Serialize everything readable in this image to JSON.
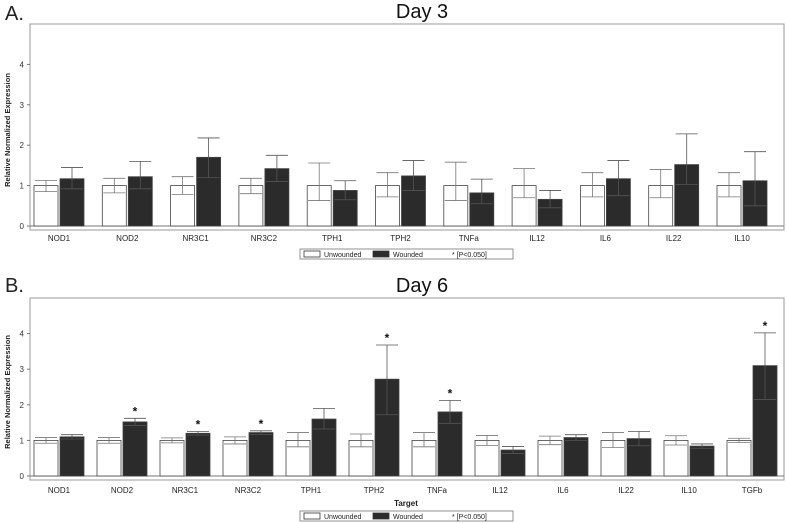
{
  "chart_data": [
    {
      "type": "bar",
      "panel_label": "A.",
      "title": "Day 3",
      "xlabel": "",
      "ylabel": "Relative Normalized Expression",
      "ylim": [
        0,
        5
      ],
      "yticks": [
        0,
        1,
        2,
        3,
        4
      ],
      "categories": [
        "NOD1",
        "NOD2",
        "NR3C1",
        "NR3C2",
        "TPH1",
        "TPH2",
        "TNFa",
        "IL12",
        "IL6",
        "IL22",
        "IL10"
      ],
      "series": [
        {
          "name": "Unwounded",
          "color": "#ffffff",
          "values": [
            1.0,
            1.0,
            1.0,
            1.0,
            1.0,
            1.0,
            1.0,
            1.0,
            1.0,
            1.0,
            1.0
          ],
          "err_low": [
            0.85,
            0.82,
            0.78,
            0.8,
            0.63,
            0.72,
            0.63,
            0.7,
            0.72,
            0.7,
            0.72
          ],
          "err_high": [
            1.13,
            1.18,
            1.22,
            1.18,
            1.56,
            1.32,
            1.58,
            1.42,
            1.32,
            1.4,
            1.32
          ]
        },
        {
          "name": "Wounded",
          "color": "#2b2b2b",
          "values": [
            1.17,
            1.22,
            1.7,
            1.42,
            0.88,
            1.24,
            0.82,
            0.66,
            1.17,
            1.52,
            1.12
          ],
          "err_low": [
            0.92,
            0.92,
            1.2,
            1.1,
            0.65,
            0.88,
            0.55,
            0.45,
            0.75,
            1.03,
            0.5
          ],
          "err_high": [
            1.45,
            1.6,
            2.18,
            1.75,
            1.12,
            1.62,
            1.16,
            0.88,
            1.62,
            2.28,
            1.84
          ]
        }
      ],
      "significant": [],
      "legend": {
        "unwounded": "Unwounded",
        "wounded": "Wounded",
        "significance": "* [P<0.050]"
      }
    },
    {
      "type": "bar",
      "panel_label": "B.",
      "title": "Day 6",
      "xlabel": "Target",
      "ylabel": "Relative Normalized Expression",
      "ylim": [
        0,
        5
      ],
      "yticks": [
        0,
        1,
        2,
        3,
        4
      ],
      "categories": [
        "NOD1",
        "NOD2",
        "NR3C1",
        "NR3C2",
        "TPH1",
        "TPH2",
        "TNFa",
        "IL12",
        "IL6",
        "IL22",
        "IL10",
        "TGFb"
      ],
      "series": [
        {
          "name": "Unwounded",
          "color": "#ffffff",
          "values": [
            1.0,
            1.0,
            1.0,
            1.0,
            1.0,
            1.0,
            1.0,
            1.0,
            1.0,
            1.0,
            1.0,
            1.0
          ],
          "err_low": [
            0.92,
            0.92,
            0.93,
            0.9,
            0.82,
            0.82,
            0.82,
            0.86,
            0.88,
            0.8,
            0.87,
            0.94
          ],
          "err_high": [
            1.08,
            1.08,
            1.07,
            1.1,
            1.22,
            1.18,
            1.22,
            1.14,
            1.12,
            1.22,
            1.13,
            1.06
          ]
        },
        {
          "name": "Wounded",
          "color": "#2b2b2b",
          "values": [
            1.1,
            1.52,
            1.2,
            1.22,
            1.6,
            2.72,
            1.8,
            0.73,
            1.08,
            1.05,
            0.84,
            3.1
          ],
          "err_low": [
            1.04,
            1.42,
            1.15,
            1.17,
            1.32,
            1.72,
            1.48,
            0.63,
            1.0,
            0.85,
            0.78,
            2.15
          ],
          "err_high": [
            1.16,
            1.62,
            1.25,
            1.27,
            1.9,
            3.68,
            2.12,
            0.83,
            1.16,
            1.25,
            0.9,
            4.02
          ]
        }
      ],
      "significant": [
        "NOD2",
        "NR3C1",
        "NR3C2",
        "TPH2",
        "TNFa",
        "TGFb"
      ],
      "legend": {
        "unwounded": "Unwounded",
        "wounded": "Wounded",
        "significance": "* [P<0.050]"
      }
    }
  ]
}
